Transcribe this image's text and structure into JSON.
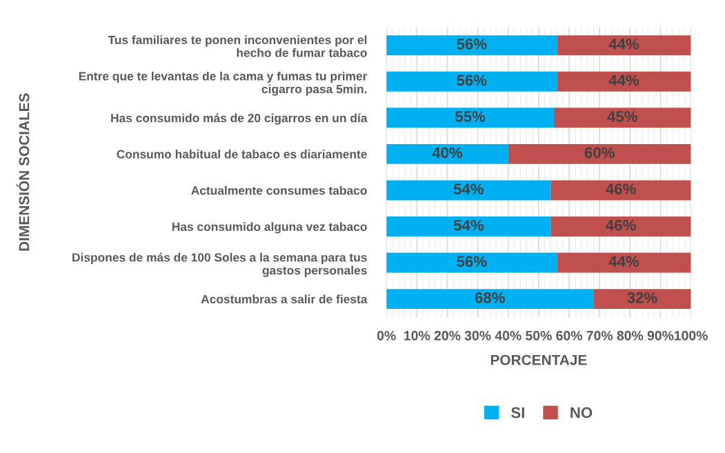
{
  "chart_data": {
    "type": "bar",
    "orientation": "horizontal",
    "stacked": true,
    "ylabel": "DIMENSIÓN SOCIALES",
    "xlabel": "PORCENTAJE",
    "categories": [
      "Tus familiares te ponen inconvenientes por el\nhecho de fumar tabaco",
      "Entre que te levantas de la cama y fumas tu primer\ncigarro pasa 5min.",
      "Has consumido más de 20 cigarros en un día",
      "Consumo habitual de tabaco es diariamente",
      "Actualmente consumes tabaco",
      "Has consumido alguna vez tabaco",
      "Dispones de más de 100 Soles a la semana para tus\ngastos personales",
      "Acostumbras a salir de fiesta"
    ],
    "series": [
      {
        "name": "SI",
        "color": "#00b0f0",
        "values": [
          56,
          56,
          55,
          40,
          54,
          54,
          56,
          68
        ],
        "value_labels": [
          "56%",
          "56%",
          "55%",
          "40%",
          "54%",
          "54%",
          "56%",
          "68%"
        ]
      },
      {
        "name": "NO",
        "color": "#c0504d",
        "values": [
          44,
          44,
          45,
          60,
          46,
          46,
          44,
          32
        ],
        "value_labels": [
          "44%",
          "44%",
          "45%",
          "60%",
          "46%",
          "46%",
          "44%",
          "32%"
        ]
      }
    ],
    "xlim": [
      0,
      100
    ],
    "xticks": [
      {
        "value": 0,
        "label": "0%"
      },
      {
        "value": 10,
        "label": "10%"
      },
      {
        "value": 20,
        "label": "20%"
      },
      {
        "value": 30,
        "label": "30%"
      },
      {
        "value": 40,
        "label": "40%"
      },
      {
        "value": 50,
        "label": "50%"
      },
      {
        "value": 60,
        "label": "60%"
      },
      {
        "value": 70,
        "label": "70%"
      },
      {
        "value": 80,
        "label": "80%"
      },
      {
        "value": 90,
        "label": "90%"
      },
      {
        "value": 100,
        "label": "100%"
      }
    ],
    "grid": "x",
    "legend": "bottom"
  }
}
